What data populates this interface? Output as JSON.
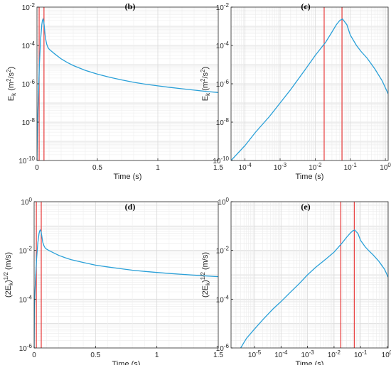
{
  "chart_data": [
    {
      "panel": "b",
      "type": "line",
      "title": "(b)",
      "xlabel": "Time (s)",
      "ylabel": "E_k (m^2/s^2)",
      "xscale": "linear",
      "yscale": "log",
      "xlim": [
        0,
        1.5
      ],
      "ylim": [
        1e-10,
        0.01
      ],
      "xticks": [
        0,
        0.5,
        1,
        1.5
      ],
      "xtick_labels": [
        "0",
        "0.5",
        "1",
        "1.5"
      ],
      "yticks": [
        1e-10,
        1e-08,
        1e-06,
        0.0001,
        0.01
      ],
      "ytick_labels": [
        [
          "10",
          "-10"
        ],
        [
          "10",
          "-8"
        ],
        [
          "10",
          "-6"
        ],
        [
          "10",
          "-4"
        ],
        [
          "10",
          "-2"
        ]
      ],
      "grid": true,
      "line_color": "#2aa0d8",
      "vlines": [
        0.018,
        0.058
      ],
      "vline_color": "#e83a3a",
      "x": [
        0.0,
        0.002,
        0.005,
        0.01,
        0.02,
        0.03,
        0.04,
        0.045,
        0.05,
        0.055,
        0.06,
        0.065,
        0.07,
        0.08,
        0.09,
        0.1,
        0.12,
        0.15,
        0.2,
        0.25,
        0.3,
        0.4,
        0.5,
        0.6,
        0.7,
        0.8,
        0.9,
        1.0,
        1.1,
        1.2,
        1.3,
        1.4,
        1.5
      ],
      "y": [
        1e-10,
        1e-09,
        1e-08,
        1e-07,
        1e-05,
        0.0002,
        0.0012,
        0.002,
        0.0024,
        0.002,
        0.0011,
        0.0005,
        0.00025,
        0.00012,
        8e-05,
        6.5e-05,
        5e-05,
        3.5e-05,
        2e-05,
        1.3e-05,
        9e-06,
        5e-06,
        3.2e-06,
        2.2e-06,
        1.6e-06,
        1.2e-06,
        9.5e-07,
        7.8e-07,
        6.5e-07,
        5.5e-07,
        4.7e-07,
        4e-07,
        3.5e-07
      ]
    },
    {
      "panel": "c",
      "type": "line",
      "title": "(c)",
      "xlabel": "Time (s)",
      "ylabel": "E_k (m^2/s^2)",
      "xscale": "log",
      "yscale": "log",
      "xlim": [
        4e-05,
        1.2
      ],
      "ylim": [
        1e-10,
        0.01
      ],
      "xticks": [
        0.0001,
        0.001,
        0.01,
        0.1,
        1
      ],
      "xtick_labels": [
        [
          "10",
          "-4"
        ],
        [
          "10",
          "-3"
        ],
        [
          "10",
          "-2"
        ],
        [
          "10",
          "-1"
        ],
        [
          "10",
          "0"
        ]
      ],
      "yticks": [
        1e-10,
        1e-08,
        1e-06,
        0.0001,
        0.01
      ],
      "ytick_labels": [
        [
          "10",
          "-10"
        ],
        [
          "10",
          "-8"
        ],
        [
          "10",
          "-6"
        ],
        [
          "10",
          "-4"
        ],
        [
          "10",
          "-2"
        ]
      ],
      "grid": true,
      "line_color": "#2aa0d8",
      "vlines": [
        0.018,
        0.058
      ],
      "vline_color": "#e83a3a",
      "x": [
        4e-05,
        0.0001,
        0.0002,
        0.0005,
        0.001,
        0.002,
        0.005,
        0.01,
        0.02,
        0.03,
        0.04,
        0.05,
        0.06,
        0.08,
        0.1,
        0.15,
        0.2,
        0.3,
        0.5,
        0.8,
        1.2
      ],
      "y": [
        1e-10,
        6e-10,
        3e-09,
        2e-08,
        1e-07,
        5e-07,
        5e-06,
        3e-05,
        0.00015,
        0.0005,
        0.0012,
        0.002,
        0.0024,
        0.0012,
        0.00035,
        0.0001,
        5e-05,
        2.2e-05,
        6e-06,
        1.5e-06,
        3e-07
      ]
    },
    {
      "panel": "d",
      "type": "line",
      "title": "(d)",
      "xlabel": "Time (s)",
      "ylabel": "(2E_k)^1/2 (m/s)",
      "xscale": "linear",
      "yscale": "log",
      "xlim": [
        0,
        1.5
      ],
      "ylim": [
        1e-06,
        1
      ],
      "xticks": [
        0,
        0.5,
        1,
        1.5
      ],
      "xtick_labels": [
        "0",
        "0.5",
        "1",
        "1.5"
      ],
      "yticks": [
        1e-06,
        0.0001,
        0.01,
        1
      ],
      "ytick_labels": [
        [
          "10",
          "-6"
        ],
        [
          "10",
          "-4"
        ],
        [
          "10",
          "-2"
        ],
        [
          "10",
          "0"
        ]
      ],
      "grid": true,
      "line_color": "#2aa0d8",
      "vlines": [
        0.018,
        0.058
      ],
      "vline_color": "#e83a3a",
      "x": [
        0.0,
        0.002,
        0.005,
        0.01,
        0.02,
        0.03,
        0.04,
        0.045,
        0.05,
        0.055,
        0.06,
        0.065,
        0.07,
        0.08,
        0.09,
        0.1,
        0.12,
        0.15,
        0.2,
        0.25,
        0.3,
        0.4,
        0.5,
        0.6,
        0.7,
        0.8,
        0.9,
        1.0,
        1.1,
        1.2,
        1.3,
        1.4,
        1.5
      ],
      "y": [
        1e-06,
        5e-05,
        0.00014,
        0.00045,
        0.0045,
        0.02,
        0.049,
        0.063,
        0.069,
        0.063,
        0.047,
        0.032,
        0.022,
        0.0155,
        0.0126,
        0.0114,
        0.01,
        0.0084,
        0.0063,
        0.0051,
        0.0042,
        0.0032,
        0.0025,
        0.0021,
        0.0018,
        0.00155,
        0.00138,
        0.00125,
        0.00114,
        0.00105,
        0.00097,
        0.0009,
        0.00084
      ]
    },
    {
      "panel": "e",
      "type": "line",
      "title": "(e)",
      "xlabel": "Time (s)",
      "ylabel": "(2E_k)^1/2 (m/s)",
      "xscale": "log",
      "yscale": "log",
      "xlim": [
        1.3e-06,
        1.1
      ],
      "ylim": [
        1e-06,
        1
      ],
      "xticks": [
        1e-05,
        0.0001,
        0.001,
        0.01,
        0.1,
        1
      ],
      "xtick_labels": [
        [
          "10",
          "-5"
        ],
        [
          "10",
          "-4"
        ],
        [
          "10",
          "-3"
        ],
        [
          "10",
          "-2"
        ],
        [
          "10",
          "-1"
        ],
        [
          "10",
          "0"
        ]
      ],
      "yticks": [
        1e-06,
        0.0001,
        0.01,
        1
      ],
      "ytick_labels": [
        [
          "10",
          "-6"
        ],
        [
          "10",
          "-4"
        ],
        [
          "10",
          "-2"
        ],
        [
          "10",
          "0"
        ]
      ],
      "grid": true,
      "line_color": "#2aa0d8",
      "vlines": [
        0.018,
        0.058
      ],
      "vline_color": "#e83a3a",
      "x": [
        3e-06,
        5e-06,
        1e-05,
        2e-05,
        5e-05,
        0.0001,
        0.0002,
        0.0005,
        0.001,
        0.002,
        0.005,
        0.01,
        0.02,
        0.03,
        0.04,
        0.05,
        0.06,
        0.08,
        0.1,
        0.15,
        0.2,
        0.3,
        0.5,
        0.8,
        1.1
      ],
      "y": [
        1e-06,
        2.5e-06,
        6e-06,
        1.4e-05,
        4e-05,
        8e-05,
        0.00017,
        0.00045,
        0.001,
        0.002,
        0.0045,
        0.0085,
        0.02,
        0.035,
        0.05,
        0.063,
        0.069,
        0.049,
        0.026,
        0.014,
        0.01,
        0.0065,
        0.0035,
        0.0017,
        0.0008
      ]
    }
  ]
}
